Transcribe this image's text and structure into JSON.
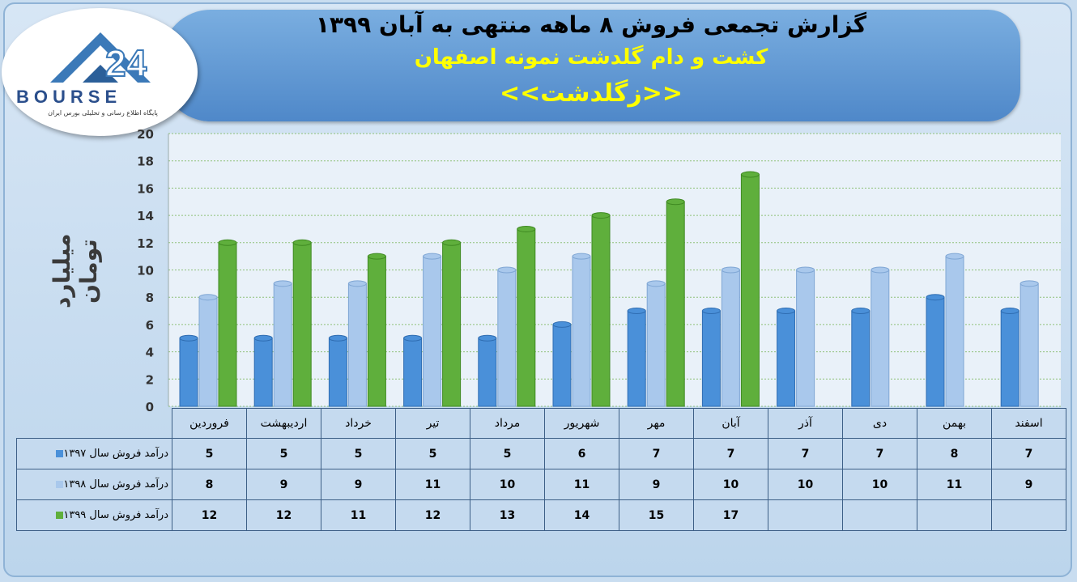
{
  "header": {
    "title": "گزارش تجمعی فروش ۸ ماهه منتهی به آبان ۱۳۹۹",
    "company": "کشت و دام گلدشت نمونه اصفهان",
    "symbol": "<<زگلدشت>>"
  },
  "logo": {
    "text": "BOURSE",
    "subtitle": "پایگاه اطلاع رسانی و تحلیلی بورس ایران"
  },
  "colors": {
    "series1": "#4a90d9",
    "series2": "#a9c8ec",
    "series3": "#5faf3c"
  },
  "chart_data": {
    "type": "bar",
    "title": "",
    "ylabel": "میلیارد تومان",
    "ylim": [
      0,
      20
    ],
    "yticks": [
      "0",
      "2",
      "4",
      "6",
      "8",
      "10",
      "12",
      "14",
      "16",
      "18",
      "20"
    ],
    "categories": [
      "فروردین",
      "اردیبهشت",
      "خرداد",
      "تیر",
      "مرداد",
      "شهریور",
      "مهر",
      "آبان",
      "آذر",
      "دی",
      "بهمن",
      "اسفند"
    ],
    "series": [
      {
        "name": "درآمد فروش سال ۱۳۹۷",
        "values": [
          5,
          5,
          5,
          5,
          5,
          6,
          7,
          7,
          7,
          7,
          8,
          7
        ]
      },
      {
        "name": "درآمد فروش سال ۱۳۹۸",
        "values": [
          8,
          9,
          9,
          11,
          10,
          11,
          9,
          10,
          10,
          10,
          11,
          9
        ]
      },
      {
        "name": "درآمد فروش سال ۱۳۹۹",
        "values": [
          12,
          12,
          11,
          12,
          13,
          14,
          15,
          17,
          null,
          null,
          null,
          null
        ]
      }
    ],
    "grid": true,
    "legend": "data-table"
  }
}
